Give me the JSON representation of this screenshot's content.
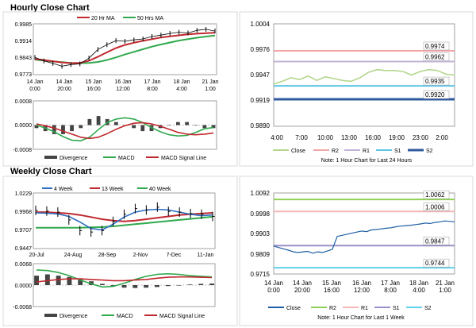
{
  "hourly_title": "Hourly Close Chart",
  "weekly_title": "Weekly Close Chart",
  "colors": {
    "close_dark": "#000000",
    "ma_short": "#c0282d",
    "ma_mid": "#2e6fc2",
    "ma_long": "#31a94e",
    "divergence": "#444444",
    "close_green": "#b5d68e",
    "r2": "#f2a6a6",
    "r1": "#c3b3d4",
    "s1": "#5ec5e6",
    "s2": "#2f5a9e",
    "close_blue": "#1e5fa3",
    "r2_green": "#8fd055",
    "r1_pink": "#f4b7b7",
    "s1_purple": "#9c8fc6",
    "s2_cyan": "#5fd0ea"
  },
  "chart_data": [
    {
      "type": "line",
      "x_tick_labels": [
        [
          "14 Jan",
          "0:00"
        ],
        [
          "14 Jan",
          "20:00"
        ],
        [
          "15 Jan",
          "16:00"
        ],
        [
          "16 Jan",
          "12:00"
        ],
        [
          "17 Jan",
          "8:00"
        ],
        [
          "18 Jan",
          "4:00"
        ],
        [
          "21 Jan",
          "1:00"
        ]
      ],
      "y_tick_labels": [
        "0.9985",
        "0.9914",
        "0.9843",
        "0.9773"
      ],
      "ylim": [
        0.9773,
        0.9985
      ],
      "series": [
        {
          "name": "20 Hr MA",
          "values": [
            0.9838,
            0.9834,
            0.9829,
            0.9824,
            0.9821,
            0.9822,
            0.9831,
            0.9848,
            0.9866,
            0.9884,
            0.9897,
            0.9906,
            0.9914,
            0.9921,
            0.9928,
            0.9933,
            0.9937,
            0.9941,
            0.9944,
            0.9946,
            0.9948
          ]
        },
        {
          "name": "50 Hrs MA",
          "values": [
            0.9836,
            0.9832,
            0.9828,
            0.9825,
            0.9822,
            0.9821,
            0.9822,
            0.9826,
            0.9834,
            0.9845,
            0.9857,
            0.9868,
            0.9879,
            0.989,
            0.9899,
            0.9907,
            0.9915,
            0.9921,
            0.9927,
            0.9932,
            0.9936
          ]
        },
        {
          "name": "Close",
          "values": [
            0.9845,
            0.983,
            0.982,
            0.9808,
            0.9815,
            0.9818,
            0.9842,
            0.9878,
            0.9898,
            0.9915,
            0.9912,
            0.9918,
            0.9922,
            0.9932,
            0.9938,
            0.9945,
            0.995,
            0.9947,
            0.9958,
            0.9962,
            0.9955
          ]
        }
      ]
    },
    {
      "type": "bar",
      "y_tick_labels": [
        "0.0008",
        "0.0000",
        "-0.0008"
      ],
      "ylim": [
        -0.0008,
        0.0008
      ],
      "series": [
        {
          "name": "Divergence",
          "values": [
            -0.0001,
            -0.0002,
            -0.0003,
            -0.0003,
            -0.0002,
            -0.0001,
            0.0002,
            0.0003,
            0.0002,
            0.0001,
            0.0,
            -0.0001,
            -0.0002,
            -0.0002,
            -0.0001,
            0.0,
            0.0001,
            0.0001,
            0.0,
            -0.0001,
            -0.0001
          ]
        },
        {
          "name": "MACD",
          "values": [
            0.0,
            -0.0001,
            -0.00022,
            -0.00038,
            -0.0005,
            -0.00052,
            -0.0004,
            -0.00015,
            8e-05,
            0.0002,
            0.00024,
            0.0002,
            8e-05,
            -8e-05,
            -0.00022,
            -0.00032,
            -0.00036,
            -0.00034,
            -0.00024,
            -0.00012,
            -8e-05
          ]
        },
        {
          "name": "MACD Signal Line",
          "values": [
            4e-05,
            -2e-05,
            -0.0001,
            -0.0002,
            -0.0003,
            -0.0004,
            -0.00044,
            -0.0004,
            -0.00028,
            -0.00014,
            -2e-05,
            6e-05,
            8e-05,
            4e-05,
            -4e-05,
            -0.00014,
            -0.00024,
            -0.0003,
            -0.00032,
            -0.0003,
            -0.00026
          ]
        }
      ]
    },
    {
      "type": "line",
      "x_tick_labels": [
        "4:00",
        "7:00",
        "10:00",
        "13:00",
        "16:00",
        "19:00",
        "23:00",
        "2:00"
      ],
      "y_tick_labels": [
        "1.0004",
        "0.9976",
        "0.9947",
        "0.9919",
        "0.9890"
      ],
      "ylim": [
        0.989,
        1.0004
      ],
      "levels": [
        {
          "name": "R2",
          "value": 0.9974,
          "label": "0.9974"
        },
        {
          "name": "R1",
          "value": 0.9962,
          "label": "0.9962"
        },
        {
          "name": "S1",
          "value": 0.9935,
          "label": "0.9935"
        },
        {
          "name": "S2",
          "value": 0.992,
          "label": "0.9920"
        }
      ],
      "series": [
        {
          "name": "Close",
          "values": [
            0.9937,
            0.994,
            0.9944,
            0.9942,
            0.9946,
            0.9941,
            0.9945,
            0.9943,
            0.9941,
            0.994,
            0.9944,
            0.995,
            0.9953,
            0.9952,
            0.9952,
            0.9951,
            0.9947,
            0.9951,
            0.9953,
            0.9952,
            0.9948,
            0.9947
          ]
        }
      ],
      "legend": [
        "Close",
        "R2",
        "R1",
        "S1",
        "S2"
      ],
      "note": "Note: 1 Hour Chart for Last 24 Hours"
    },
    {
      "type": "line",
      "x_tick_labels": [
        "20-Jul",
        "24-Aug",
        "28-Sep",
        "2-Nov",
        "7-Dec",
        "11-Jan"
      ],
      "y_tick_labels": [
        "1.0229",
        "0.9968",
        "0.9707",
        "0.9447"
      ],
      "ylim": [
        0.9447,
        1.0229
      ],
      "series": [
        {
          "name": "4 Week",
          "values": [
            0.995,
            0.9945,
            0.9935,
            0.99,
            0.982,
            0.973,
            0.971,
            0.979,
            0.989,
            0.996,
            0.999,
            1.0,
            0.999,
            0.996,
            0.993,
            0.991,
            0.992
          ]
        },
        {
          "name": "13 Week",
          "values": [
            0.996,
            0.996,
            0.995,
            0.994,
            0.992,
            0.989,
            0.986,
            0.984,
            0.983,
            0.984,
            0.986,
            0.988,
            0.99,
            0.992,
            0.993,
            0.994,
            0.995
          ]
        },
        {
          "name": "40 Week",
          "values": [
            0.974,
            0.974,
            0.974,
            0.974,
            0.974,
            0.9745,
            0.975,
            0.976,
            0.9775,
            0.979,
            0.9805,
            0.982,
            0.9835,
            0.985,
            0.9865,
            0.988,
            0.9895
          ]
        },
        {
          "name": "Close",
          "values": [
            0.9985,
            0.9975,
            0.996,
            0.985,
            0.97,
            0.968,
            0.97,
            0.983,
            0.993,
            1.001,
            0.999,
            1.003,
            0.997,
            0.996,
            0.994,
            0.993,
            0.99
          ]
        }
      ]
    },
    {
      "type": "bar",
      "y_tick_labels": [
        "0.0068",
        "0.0000",
        "-0.0068"
      ],
      "ylim": [
        -0.0068,
        0.0068
      ],
      "series": [
        {
          "name": "Divergence",
          "values": [
            0.003,
            0.0034,
            0.003,
            0.0026,
            0.002,
            0.0012,
            0.0004,
            -0.0004,
            -0.0008,
            -0.0009,
            -0.0008,
            -0.0006,
            -0.0003,
            0.0,
            0.0002,
            0.0004,
            0.0005
          ]
        },
        {
          "name": "MACD",
          "values": [
            0.0048,
            0.0046,
            0.004,
            0.003,
            0.0016,
            0.0004,
            -0.0006,
            -0.0004,
            0.0006,
            0.0018,
            0.0028,
            0.0034,
            0.0036,
            0.0034,
            0.003,
            0.0028,
            0.0026
          ]
        },
        {
          "name": "MACD Signal Line",
          "values": [
            0.001,
            0.0014,
            0.0018,
            0.002,
            0.002,
            0.0018,
            0.0016,
            0.0014,
            0.0014,
            0.0016,
            0.0018,
            0.0022,
            0.0025,
            0.0026,
            0.0026,
            0.0025,
            0.0024
          ]
        }
      ]
    },
    {
      "type": "line",
      "x_tick_labels": [
        [
          "14 Jan",
          "0:00"
        ],
        [
          "14 Jan",
          "20:00"
        ],
        [
          "15 Jan",
          "16:00"
        ],
        [
          "16 Jan",
          "12:00"
        ],
        [
          "17 Jan",
          "8:00"
        ],
        [
          "18 Jan",
          "4:00"
        ],
        [
          "21 Jan",
          "1:00"
        ]
      ],
      "y_tick_labels": [
        "1.0092",
        "0.9998",
        "0.9903",
        "0.9809",
        "0.9715"
      ],
      "ylim": [
        0.9715,
        1.0092
      ],
      "levels": [
        {
          "name": "R2",
          "value": 1.0062,
          "label": "1.0062"
        },
        {
          "name": "R1",
          "value": 1.0006,
          "label": "1.0006"
        },
        {
          "name": "S1",
          "value": 0.9847,
          "label": "0.9847"
        },
        {
          "name": "S2",
          "value": 0.9744,
          "label": "0.9744"
        }
      ],
      "series": [
        {
          "name": "Close",
          "values": [
            0.9845,
            0.9838,
            0.9832,
            0.9826,
            0.9818,
            0.9815,
            0.9818,
            0.982,
            0.9812,
            0.9818,
            0.9815,
            0.9822,
            0.983,
            0.989,
            0.9895,
            0.99,
            0.9905,
            0.991,
            0.9915,
            0.9912,
            0.992,
            0.9922,
            0.9925,
            0.9928,
            0.993,
            0.9935,
            0.9938,
            0.994,
            0.9942,
            0.9945,
            0.9948,
            0.9952,
            0.995,
            0.9955,
            0.9958,
            0.9962,
            0.996,
            0.9958
          ]
        }
      ],
      "legend": [
        "Close",
        "R2",
        "R1",
        "S1",
        "S2"
      ],
      "note": "Note: 1 Hour Chart for Last 1 Week"
    }
  ]
}
